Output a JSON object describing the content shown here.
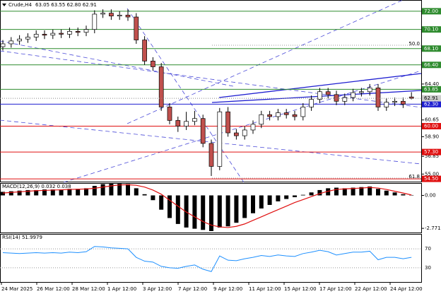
{
  "chart_data": [
    {
      "type": "candlestick",
      "title": "Crude,H4",
      "subtitle": "63.05 63.55 62.80 62.91",
      "open": [
        68.3,
        68.6,
        68.9,
        69.1,
        69.3,
        69.6,
        69.5,
        69.7,
        69.6,
        69.9,
        69.8,
        70.1,
        71.7,
        71.8,
        71.5,
        71.6,
        71.4,
        69.0,
        66.8,
        66.2,
        62.0,
        60.6,
        60.0,
        60.5,
        60.8,
        58.2,
        55.8,
        61.5,
        59.3,
        59.0,
        59.6,
        60.2,
        61.2,
        61.0,
        61.4,
        61.2,
        61.0,
        62.0,
        62.8,
        63.6,
        63.3,
        62.6,
        63.0,
        63.5,
        63.6,
        64.0,
        62.0,
        62.5,
        62.6,
        63.05
      ],
      "high": [
        69.0,
        69.3,
        69.5,
        69.7,
        70.0,
        70.0,
        70.1,
        70.1,
        70.3,
        70.3,
        70.5,
        72.1,
        72.2,
        72.2,
        72.0,
        72.2,
        71.8,
        69.4,
        67.2,
        66.6,
        62.4,
        61.0,
        61.5,
        61.6,
        61.2,
        58.6,
        61.9,
        62.0,
        59.7,
        60.0,
        60.6,
        61.6,
        61.6,
        61.8,
        61.8,
        61.6,
        62.4,
        63.2,
        64.0,
        64.0,
        63.7,
        63.4,
        63.9,
        64.0,
        64.4,
        64.4,
        62.9,
        63.0,
        63.0,
        63.55
      ],
      "low": [
        67.9,
        68.2,
        68.5,
        68.7,
        68.9,
        69.1,
        69.1,
        69.2,
        69.2,
        69.4,
        69.4,
        69.7,
        71.3,
        71.1,
        71.1,
        71.0,
        68.6,
        66.4,
        65.8,
        61.6,
        60.2,
        59.4,
        59.6,
        60.1,
        57.8,
        54.8,
        55.4,
        58.9,
        58.6,
        58.6,
        59.2,
        59.8,
        60.6,
        60.6,
        60.8,
        60.6,
        60.6,
        61.6,
        62.4,
        62.9,
        62.2,
        62.2,
        62.6,
        63.1,
        63.2,
        61.6,
        61.6,
        62.1,
        61.9,
        62.8
      ],
      "close": [
        68.6,
        68.9,
        69.1,
        69.3,
        69.6,
        69.5,
        69.7,
        69.6,
        69.9,
        69.8,
        70.1,
        71.7,
        71.8,
        71.5,
        71.6,
        71.4,
        69.0,
        66.8,
        66.2,
        62.0,
        60.6,
        60.0,
        60.5,
        60.8,
        58.2,
        55.8,
        61.5,
        59.3,
        59.0,
        59.6,
        60.2,
        61.2,
        61.0,
        61.4,
        61.2,
        61.0,
        62.0,
        62.8,
        63.6,
        63.3,
        62.6,
        63.0,
        63.5,
        63.6,
        64.0,
        62.0,
        62.5,
        62.6,
        62.3,
        62.91
      ],
      "up_color": "#ffffff",
      "down_color": "#c0504d",
      "ylim": [
        54.21,
        73.1
      ],
      "yticks": [
        {
          "value": 64.4,
          "label": "64.40"
        },
        60.65,
        {
          "value": 58.9,
          "label": "58.90"
        },
        56.85,
        {
          "value": 55,
          "label": "55.00"
        }
      ],
      "levels": [
        {
          "value": 72,
          "label": "72.00",
          "color": "#2e8b2e"
        },
        {
          "value": 70.1,
          "label": "70.10",
          "color": "#2e8b2e"
        },
        {
          "value": 68.1,
          "label": "68.10",
          "color": "#2e8b2e"
        },
        {
          "value": 66.4,
          "label": "66.40",
          "color": "#2e8b2e"
        },
        {
          "value": 63.85,
          "label": "63.85",
          "color": "#2e8b2e"
        },
        {
          "value": 62.3,
          "label": "62.30",
          "color": "#1f1fd0"
        },
        {
          "value": 60,
          "label": "60.00",
          "color": "#e01010"
        },
        {
          "value": 57.3,
          "label": "57.30",
          "color": "#e01010"
        },
        {
          "value": 54.5,
          "label": "54.50",
          "color": "#e01010"
        }
      ],
      "annotations": [
        "50.0",
        "61.8"
      ]
    },
    {
      "type": "macd",
      "title": "MACD(12,26,9) 0.032 0.038",
      "values": [
        0.3,
        0.35,
        0.4,
        0.45,
        0.45,
        0.5,
        0.5,
        0.5,
        0.55,
        0.55,
        0.6,
        0.8,
        0.95,
        1.0,
        1.0,
        0.95,
        0.6,
        0.1,
        -0.4,
        -1.2,
        -1.9,
        -2.4,
        -2.7,
        -2.8,
        -2.9,
        -3.0,
        -2.7,
        -2.6,
        -2.3,
        -1.9,
        -1.5,
        -1.1,
        -0.8,
        -0.5,
        -0.3,
        -0.15,
        0.05,
        0.25,
        0.45,
        0.6,
        0.65,
        0.6,
        0.65,
        0.7,
        0.75,
        0.55,
        0.4,
        0.25,
        0.1,
        0.032
      ],
      "signal": [
        0.2,
        0.25,
        0.3,
        0.35,
        0.4,
        0.42,
        0.45,
        0.47,
        0.5,
        0.52,
        0.54,
        0.6,
        0.7,
        0.8,
        0.88,
        0.9,
        0.85,
        0.7,
        0.45,
        0.1,
        -0.4,
        -0.9,
        -1.4,
        -1.8,
        -2.2,
        -2.5,
        -2.65,
        -2.7,
        -2.6,
        -2.4,
        -2.1,
        -1.8,
        -1.5,
        -1.2,
        -0.9,
        -0.6,
        -0.35,
        -0.1,
        0.15,
        0.35,
        0.5,
        0.55,
        0.58,
        0.62,
        0.67,
        0.62,
        0.5,
        0.35,
        0.2,
        0.038
      ],
      "color": "#000000",
      "signal_color": "#e01010",
      "ylim": [
        -3.12,
        0.98
      ],
      "yticks": [
        {
          "value": 0,
          "label": "0.00"
        },
        -2.771
      ]
    },
    {
      "type": "line",
      "title": "RSI(14) 51.9979",
      "values": [
        62,
        61,
        60,
        61,
        62,
        61,
        62,
        61,
        63,
        62,
        64,
        75,
        74,
        72,
        71,
        70,
        52,
        44,
        42,
        33,
        30,
        29,
        33,
        36,
        27,
        22,
        55,
        46,
        45,
        49,
        52,
        56,
        54,
        57,
        55,
        54,
        60,
        63,
        67,
        64,
        57,
        60,
        63,
        63,
        65,
        47,
        52,
        52,
        49,
        51.9979
      ],
      "color": "#1e90ff",
      "ylim": [
        0,
        100
      ],
      "yticks": [
        70,
        30
      ],
      "xtick_labels": [
        "24 Mar 2025",
        "26 Mar 12:00",
        "28 Mar 12:00",
        "1 Apr 12:00",
        "3 Apr 12:00",
        "7 Apr 12:00",
        "9 Apr 12:00",
        "11 Apr 12:00",
        "15 Apr 12:00",
        "17 Apr 12:00",
        "22 Apr 12:00",
        "24 Apr 12:00"
      ]
    }
  ]
}
